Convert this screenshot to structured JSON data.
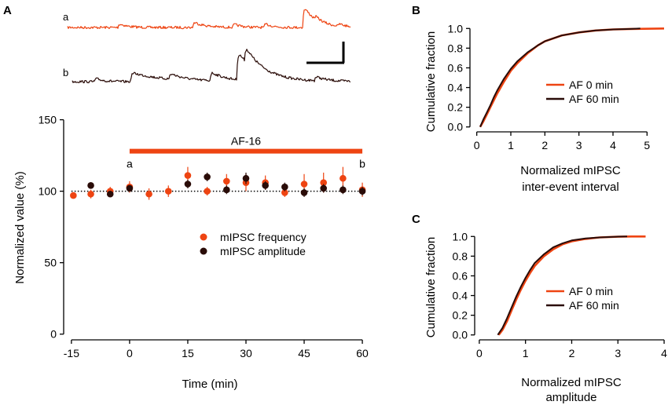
{
  "colors": {
    "frequency": "#ee4412",
    "amplitude": "#2a0c08",
    "axis": "#000000"
  },
  "panels": {
    "A": {
      "label": "A",
      "traces": [
        {
          "name": "a",
          "color": "#ee4412"
        },
        {
          "name": "b",
          "color": "#2a0c08"
        }
      ],
      "scale_bar": {
        "present": true
      }
    },
    "B": {
      "label": "B"
    },
    "C": {
      "label": "C"
    }
  },
  "chart_data": [
    {
      "id": "A",
      "type": "scatter",
      "xlabel": "Time (min)",
      "ylabel": "Normalized value (%)",
      "xlim": [
        -17,
        61
      ],
      "ylim": [
        -4,
        158
      ],
      "xticks": [
        -15,
        0,
        15,
        30,
        45,
        60
      ],
      "yticks": [
        0,
        50,
        100,
        150
      ],
      "reference_line": {
        "y": 100,
        "style": "dotted"
      },
      "drug_bar": {
        "label": "AF-16",
        "start": 0,
        "end": 60,
        "y": 128,
        "color": "#ee4412"
      },
      "time_markers": [
        {
          "label": "a",
          "x": 0
        },
        {
          "label": "b",
          "x": 60
        }
      ],
      "legend": [
        "mIPSC frequency",
        "mIPSC amplitude"
      ],
      "series": [
        {
          "name": "mIPSC frequency",
          "color": "#ee4412",
          "x": [
            -14.5,
            -10,
            -5,
            0,
            5,
            10,
            15,
            20,
            25,
            30,
            35,
            40,
            45,
            50,
            55,
            60
          ],
          "y": [
            97,
            98,
            100,
            103,
            98,
            100,
            111,
            100,
            107,
            106,
            106,
            99,
            105,
            106,
            109,
            101
          ],
          "err": [
            2,
            3,
            3,
            4,
            4,
            4,
            6,
            3,
            5,
            6,
            5,
            3,
            7,
            7,
            8,
            5
          ]
        },
        {
          "name": "mIPSC amplitude",
          "color": "#2a0c08",
          "x": [
            -10,
            -5,
            0,
            15,
            20,
            25,
            30,
            35,
            40,
            45,
            50,
            55,
            60
          ],
          "y": [
            104,
            98,
            102,
            105,
            110,
            101,
            109,
            104,
            103,
            99,
            102,
            101,
            100
          ],
          "err": [
            2,
            2,
            2,
            3,
            3,
            3,
            4,
            3,
            3,
            3,
            3,
            3,
            3
          ]
        }
      ]
    },
    {
      "id": "B",
      "type": "line",
      "xlabel": "Normalized mIPSC inter-event interval",
      "ylabel": "Cumulative fraction",
      "xlim": [
        -0.2,
        5.5
      ],
      "ylim": [
        -0.05,
        1.05
      ],
      "xticks": [
        0,
        1,
        2,
        3,
        4,
        5
      ],
      "yticks": [
        0.0,
        0.2,
        0.4,
        0.6,
        0.8,
        1.0
      ],
      "legend": [
        "AF 0 min",
        "AF 60 min"
      ],
      "series": [
        {
          "name": "AF 0 min",
          "color": "#ee4412",
          "x": [
            0.1,
            0.2,
            0.3,
            0.4,
            0.5,
            0.6,
            0.8,
            1.0,
            1.2,
            1.5,
            1.8,
            2.0,
            2.5,
            3.0,
            3.5,
            4.0,
            4.5,
            5.5
          ],
          "y": [
            0.0,
            0.06,
            0.13,
            0.2,
            0.27,
            0.34,
            0.46,
            0.57,
            0.65,
            0.75,
            0.83,
            0.87,
            0.93,
            0.96,
            0.98,
            0.99,
            0.995,
            1.0
          ]
        },
        {
          "name": "AF 60 min",
          "color": "#2a0c08",
          "x": [
            0.1,
            0.2,
            0.3,
            0.4,
            0.5,
            0.6,
            0.8,
            1.0,
            1.2,
            1.5,
            1.8,
            2.0,
            2.5,
            3.0,
            3.5,
            4.0,
            4.5,
            4.8
          ],
          "y": [
            0.0,
            0.08,
            0.15,
            0.22,
            0.3,
            0.37,
            0.49,
            0.59,
            0.67,
            0.76,
            0.83,
            0.87,
            0.93,
            0.96,
            0.98,
            0.99,
            0.995,
            1.0
          ]
        }
      ]
    },
    {
      "id": "C",
      "type": "line",
      "xlabel": "Normalized mIPSC amplitude",
      "ylabel": "Cumulative fraction",
      "xlim": [
        -0.1,
        4.05
      ],
      "ylim": [
        -0.05,
        1.05
      ],
      "xticks": [
        0,
        1,
        2,
        3,
        4
      ],
      "yticks": [
        0.0,
        0.2,
        0.4,
        0.6,
        0.8,
        1.0
      ],
      "legend": [
        "AF 0 min",
        "AF 60 min"
      ],
      "series": [
        {
          "name": "AF 0 min",
          "color": "#ee4412",
          "x": [
            0.42,
            0.5,
            0.6,
            0.7,
            0.8,
            0.9,
            1.0,
            1.1,
            1.2,
            1.4,
            1.6,
            1.8,
            2.0,
            2.3,
            2.6,
            3.0,
            3.3,
            3.6
          ],
          "y": [
            0.0,
            0.05,
            0.14,
            0.25,
            0.36,
            0.46,
            0.55,
            0.63,
            0.7,
            0.8,
            0.87,
            0.92,
            0.95,
            0.975,
            0.99,
            0.997,
            1.0,
            1.0
          ]
        },
        {
          "name": "AF 60 min",
          "color": "#2a0c08",
          "x": [
            0.4,
            0.5,
            0.6,
            0.7,
            0.8,
            0.9,
            1.0,
            1.1,
            1.2,
            1.4,
            1.6,
            1.8,
            2.0,
            2.3,
            2.6,
            3.0,
            3.2
          ],
          "y": [
            0.0,
            0.07,
            0.17,
            0.28,
            0.39,
            0.49,
            0.58,
            0.66,
            0.73,
            0.82,
            0.89,
            0.93,
            0.96,
            0.98,
            0.99,
            0.998,
            1.0
          ]
        }
      ]
    }
  ]
}
